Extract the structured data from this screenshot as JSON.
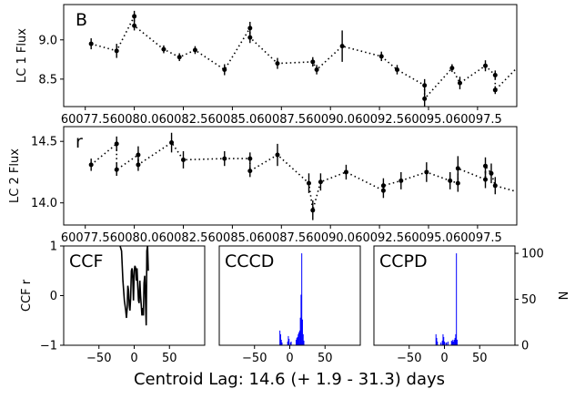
{
  "chart_data": [
    {
      "type": "scatter",
      "corner_label": "B",
      "ylabel": "LC 1 Flux",
      "xlim": [
        60076.4,
        60099.5
      ],
      "ylim": [
        8.15,
        9.45
      ],
      "xticks": [
        60077.5,
        60080.0,
        60082.5,
        60085.0,
        60087.5,
        60090.0,
        60092.5,
        60095.0,
        60097.5
      ],
      "xtick_labels": [
        "60077.5",
        "60080.0",
        "60082.5",
        "60085.0",
        "60087.5",
        "60090.0",
        "60092.5",
        "60095.0",
        "60097.5"
      ],
      "yticks": [
        8.5,
        9.0
      ],
      "ytick_labels": [
        "8.5",
        "9.0"
      ],
      "connect_points": true,
      "line_style": "dotted",
      "points": [
        {
          "x": 60077.8,
          "y": 8.95,
          "err": 0.07
        },
        {
          "x": 60079.1,
          "y": 8.86,
          "err": 0.09
        },
        {
          "x": 60080.0,
          "y": 9.3,
          "err": 0.07
        },
        {
          "x": 60080.0,
          "y": 9.18,
          "err": 0.06
        },
        {
          "x": 60081.5,
          "y": 8.88,
          "err": 0.05
        },
        {
          "x": 60082.3,
          "y": 8.78,
          "err": 0.05
        },
        {
          "x": 60083.1,
          "y": 8.87,
          "err": 0.05
        },
        {
          "x": 60084.6,
          "y": 8.62,
          "err": 0.07
        },
        {
          "x": 60085.9,
          "y": 9.15,
          "err": 0.08
        },
        {
          "x": 60085.9,
          "y": 9.03,
          "err": 0.07
        },
        {
          "x": 60087.3,
          "y": 8.7,
          "err": 0.07
        },
        {
          "x": 60089.1,
          "y": 8.72,
          "err": 0.06
        },
        {
          "x": 60089.3,
          "y": 8.62,
          "err": 0.06
        },
        {
          "x": 60090.6,
          "y": 8.92,
          "err": 0.2
        },
        {
          "x": 60092.6,
          "y": 8.79,
          "err": 0.06
        },
        {
          "x": 60093.4,
          "y": 8.62,
          "err": 0.06
        },
        {
          "x": 60094.8,
          "y": 8.42,
          "err": 0.08
        },
        {
          "x": 60094.8,
          "y": 8.25,
          "err": 0.12
        },
        {
          "x": 60096.2,
          "y": 8.64,
          "err": 0.05
        },
        {
          "x": 60096.6,
          "y": 8.45,
          "err": 0.08
        },
        {
          "x": 60097.9,
          "y": 8.67,
          "err": 0.07
        },
        {
          "x": 60098.4,
          "y": 8.55,
          "err": 0.06
        },
        {
          "x": 60098.4,
          "y": 8.36,
          "err": 0.05
        },
        {
          "x": 60100.2,
          "y": 8.82,
          "err": 0.17
        }
      ]
    },
    {
      "type": "scatter",
      "corner_label": "r",
      "ylabel": "LC 2 Flux",
      "xlim": [
        60076.4,
        60099.5
      ],
      "ylim": [
        13.82,
        14.62
      ],
      "xticks": [
        60077.5,
        60080.0,
        60082.5,
        60085.0,
        60087.5,
        60090.0,
        60092.5,
        60095.0,
        60097.5
      ],
      "xtick_labels": [
        "60077.5",
        "60080.0",
        "60082.5",
        "60085.0",
        "60087.5",
        "60090.0",
        "60092.5",
        "60095.0",
        "60097.5"
      ],
      "yticks": [
        14.0,
        14.5
      ],
      "ytick_labels": [
        "14.0",
        "14.5"
      ],
      "connect_points": true,
      "line_style": "dotted",
      "points": [
        {
          "x": 60077.8,
          "y": 14.31,
          "err": 0.05
        },
        {
          "x": 60079.1,
          "y": 14.48,
          "err": 0.06
        },
        {
          "x": 60079.1,
          "y": 14.27,
          "err": 0.05
        },
        {
          "x": 60080.2,
          "y": 14.39,
          "err": 0.07
        },
        {
          "x": 60080.2,
          "y": 14.31,
          "err": 0.05
        },
        {
          "x": 60081.9,
          "y": 14.49,
          "err": 0.08
        },
        {
          "x": 60082.5,
          "y": 14.35,
          "err": 0.07
        },
        {
          "x": 60084.6,
          "y": 14.36,
          "err": 0.06
        },
        {
          "x": 60085.9,
          "y": 14.36,
          "err": 0.05
        },
        {
          "x": 60085.9,
          "y": 14.26,
          "err": 0.05
        },
        {
          "x": 60087.3,
          "y": 14.39,
          "err": 0.09
        },
        {
          "x": 60088.9,
          "y": 14.16,
          "err": 0.08
        },
        {
          "x": 60089.1,
          "y": 13.94,
          "err": 0.08
        },
        {
          "x": 60089.5,
          "y": 14.17,
          "err": 0.07
        },
        {
          "x": 60090.8,
          "y": 14.25,
          "err": 0.06
        },
        {
          "x": 60092.7,
          "y": 14.1,
          "err": 0.06
        },
        {
          "x": 60092.7,
          "y": 14.14,
          "err": 0.06
        },
        {
          "x": 60093.6,
          "y": 14.18,
          "err": 0.07
        },
        {
          "x": 60094.9,
          "y": 14.25,
          "err": 0.08
        },
        {
          "x": 60096.1,
          "y": 14.18,
          "err": 0.07
        },
        {
          "x": 60096.5,
          "y": 14.16,
          "err": 0.07
        },
        {
          "x": 60096.5,
          "y": 14.28,
          "err": 0.1
        },
        {
          "x": 60097.9,
          "y": 14.19,
          "err": 0.07
        },
        {
          "x": 60097.9,
          "y": 14.3,
          "err": 0.07
        },
        {
          "x": 60098.2,
          "y": 14.24,
          "err": 0.08
        },
        {
          "x": 60098.4,
          "y": 14.14,
          "err": 0.07
        },
        {
          "x": 60100.2,
          "y": 14.06,
          "err": 0.06
        }
      ]
    },
    {
      "type": "line",
      "corner_label": "CCF",
      "ylabel": "CCF r",
      "xlim": [
        -100,
        100
      ],
      "ylim": [
        -1,
        1
      ],
      "xticks": [
        -50,
        0,
        50
      ],
      "xtick_labels": [
        "−50",
        "0",
        "50"
      ],
      "yticks": [
        -1,
        0,
        1
      ],
      "ytick_labels": [
        "−1",
        "0",
        "1"
      ],
      "x": [
        -20,
        -18,
        -16,
        -14,
        -12,
        -11,
        -10,
        -9,
        -8,
        -7,
        -6,
        -5,
        -4,
        -3,
        -2,
        -1,
        0,
        1,
        2,
        3,
        4,
        5,
        6,
        7,
        8,
        9,
        10,
        11,
        12,
        13,
        14,
        15,
        16,
        17,
        18,
        19,
        20
      ],
      "y": [
        1.0,
        0.9,
        0.3,
        -0.1,
        -0.3,
        -0.45,
        -0.25,
        0.2,
        0.1,
        -0.2,
        -0.3,
        -0.05,
        0.5,
        0.55,
        0.35,
        -0.1,
        0.5,
        0.6,
        0.55,
        0.3,
        0.55,
        0.2,
        -0.1,
        -0.15,
        0.3,
        0.0,
        -0.2,
        -0.4,
        -0.25,
        -0.4,
        0.25,
        0.4,
        -0.05,
        -0.6,
        0.9,
        1.0,
        0.5
      ]
    },
    {
      "type": "bar",
      "corner_label": "CCCD",
      "xlim": [
        -100,
        100
      ],
      "ylim": [
        0,
        108
      ],
      "xticks": [
        -50,
        0,
        50
      ],
      "xtick_labels": [
        "−50",
        "0",
        "50"
      ],
      "bar_color": "#0000ff",
      "bins": [
        {
          "x": -14,
          "h": 16
        },
        {
          "x": -13,
          "h": 12
        },
        {
          "x": -12,
          "h": 6
        },
        {
          "x": -11,
          "h": 3
        },
        {
          "x": -3,
          "h": 4
        },
        {
          "x": -2,
          "h": 10
        },
        {
          "x": -1,
          "h": 7
        },
        {
          "x": 1,
          "h": 3
        },
        {
          "x": 2,
          "h": 4
        },
        {
          "x": 9,
          "h": 6
        },
        {
          "x": 10,
          "h": 8
        },
        {
          "x": 11,
          "h": 9
        },
        {
          "x": 12,
          "h": 12
        },
        {
          "x": 13,
          "h": 14
        },
        {
          "x": 14,
          "h": 16
        },
        {
          "x": 15,
          "h": 30
        },
        {
          "x": 16,
          "h": 55
        },
        {
          "x": 17,
          "h": 100
        },
        {
          "x": 18,
          "h": 28
        },
        {
          "x": 19,
          "h": 12
        },
        {
          "x": 20,
          "h": 5
        }
      ]
    },
    {
      "type": "bar",
      "corner_label": "CCPD",
      "ylabel": "N",
      "xlim": [
        -100,
        100
      ],
      "ylim": [
        0,
        108
      ],
      "xticks": [
        -50,
        0,
        50
      ],
      "xtick_labels": [
        "−50",
        "0",
        "50"
      ],
      "yticks": [
        0,
        50,
        100
      ],
      "ytick_labels": [
        "0",
        "50",
        "100"
      ],
      "bar_color": "#0000ff",
      "bins": [
        {
          "x": -12,
          "h": 12
        },
        {
          "x": -11,
          "h": 8
        },
        {
          "x": -10,
          "h": 4
        },
        {
          "x": -5,
          "h": 3
        },
        {
          "x": -3,
          "h": 5
        },
        {
          "x": -2,
          "h": 12
        },
        {
          "x": -1,
          "h": 9
        },
        {
          "x": 0,
          "h": 4
        },
        {
          "x": 2,
          "h": 3
        },
        {
          "x": 3,
          "h": 3
        },
        {
          "x": 5,
          "h": 4
        },
        {
          "x": 10,
          "h": 5
        },
        {
          "x": 11,
          "h": 4
        },
        {
          "x": 12,
          "h": 6
        },
        {
          "x": 13,
          "h": 4
        },
        {
          "x": 14,
          "h": 6
        },
        {
          "x": 15,
          "h": 8
        },
        {
          "x": 16,
          "h": 12
        },
        {
          "x": 17,
          "h": 100
        },
        {
          "x": 18,
          "h": 6
        }
      ]
    }
  ],
  "footer": {
    "text": "Centroid Lag:  14.6 (+  1.9 - 31.3) days"
  }
}
